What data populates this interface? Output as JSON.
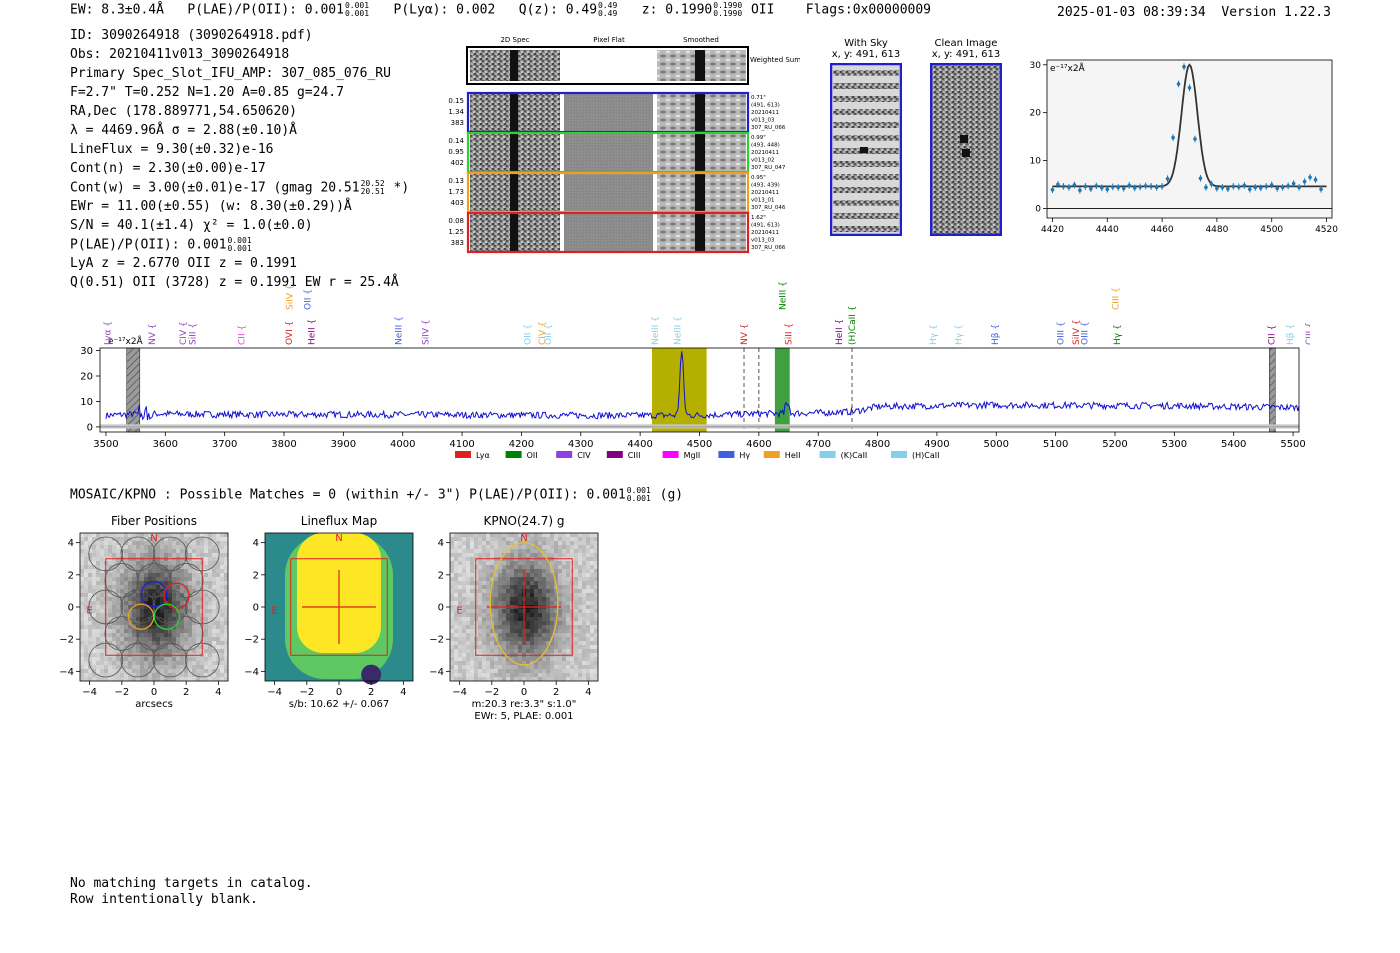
{
  "header": {
    "ew": "EW: 8.3±0.4Å",
    "plae_label": "P(LAE)/P(OII): 0.001",
    "plae_hi": "0.001",
    "plae_lo": "0.001",
    "plya": "P(Lyα): 0.002",
    "qz_label": "Q(z): 0.49",
    "qz_hi": "0.49",
    "qz_lo": "0.49",
    "z_label": "z: 0.1990",
    "z_hi": "0.1990",
    "z_lo": "0.1990",
    "z_line": "OII",
    "flags": "Flags:0x00000009",
    "datetime": "2025-01-03 08:39:34",
    "version": "Version 1.22.3"
  },
  "info": {
    "lines": [
      "ID: 3090264918 (3090264918.pdf)",
      "Obs: 20210411v013_3090264918",
      "Primary Spec_Slot_IFU_AMP: 307_085_076_RU",
      "F=2.7\"  T=0.252  N=1.20  A=0.85  g=24.7",
      "RA,Dec (178.889771,54.650620)",
      "λ = 4469.96Å  σ = 2.88(±0.10)Å",
      "LineFlux = 9.30(±0.32)e-16",
      "Cont(n) = 2.30(±0.00)e-17"
    ],
    "contw_pre": "Cont(w) = 3.00(±0.01)e-17 (gmag 20.51",
    "contw_hi": "20.52",
    "contw_lo": "20.51",
    "contw_post": "*)",
    "lines2": [
      "EWr = 11.00(±0.55) (w: 8.30(±0.29))Å",
      "S/N = 40.1(±1.4)  χ² = 1.0(±0.0)"
    ],
    "plae2_pre": "P(LAE)/P(OII): 0.001",
    "plae2_hi": "0.001",
    "plae2_lo": "0.001",
    "lines3": [
      "LyA z = 2.6770  OII z = 0.1991",
      "Q(0.51) OII (3728) z = 0.1991  EW r = 25.4Å"
    ]
  },
  "cutouts": {
    "col_headers": [
      "2D Spec",
      "Pixel Flat",
      "Smoothed"
    ],
    "weighted_sum": "Weighted Sum",
    "rows": [
      {
        "left": [
          "0.15",
          "1.34",
          "383"
        ],
        "right": [
          "0.71\"",
          "(491, 613)",
          "20210411",
          "v013_03",
          "307_RU_066"
        ],
        "color": "#1f1fd0"
      },
      {
        "left": [
          "0.14",
          "0.95",
          "402"
        ],
        "right": [
          "0.99\"",
          "(493, 448)",
          "20210411",
          "v013_02",
          "307_RU_047"
        ],
        "color": "#2fd02f"
      },
      {
        "left": [
          "0.13",
          "1.73",
          "403"
        ],
        "right": [
          "0.95\"",
          "(493, 439)",
          "20210411",
          "v013_01",
          "307_RU_046"
        ],
        "color": "#f0a020"
      },
      {
        "left": [
          "0.08",
          "1.25",
          "383"
        ],
        "right": [
          "1.62\"",
          "(491, 613)",
          "20210411",
          "v013_03",
          "307_RU_066"
        ],
        "color": "#e02020"
      }
    ]
  },
  "sky": {
    "with_sky_title": "With Sky",
    "with_sky_coords": "x, y: 491, 613",
    "clean_title": "Clean Image",
    "clean_coords": "x, y: 491, 613"
  },
  "zoom_chart": {
    "unit_label": "e⁻¹⁷x2Å",
    "colors": {
      "points": "#1f77b4",
      "fit": "#333333"
    }
  },
  "full_spec_unit": "e⁻¹⁷x2Å",
  "line_labels": [
    {
      "name": "Lyα",
      "wave": 3503,
      "color": "#9040c0",
      "tier": 2
    },
    {
      "name": "NV",
      "wave": 3578,
      "color": "#9040c0",
      "tier": 2
    },
    {
      "name": "CIV",
      "wave": 3630,
      "color": "#9040c0",
      "tier": 2
    },
    {
      "name": "SiII",
      "wave": 3646,
      "color": "#9040c0",
      "tier": 2
    },
    {
      "name": "CII",
      "wave": 3728,
      "color": "#e040e0",
      "tier": 2
    },
    {
      "name": "SiIV",
      "wave": 3809,
      "color": "#f0a020",
      "tier": 1
    },
    {
      "name": "OVI",
      "wave": 3808,
      "color": "#e02020",
      "tier": 2
    },
    {
      "name": "OII",
      "wave": 3840,
      "color": "#4060e0",
      "tier": 1
    },
    {
      "name": "HeII",
      "wave": 3846,
      "color": "#900090",
      "tier": 2
    },
    {
      "name": "NeIII",
      "wave": 3993,
      "color": "#4060e0",
      "tier": 2
    },
    {
      "name": "SiIV",
      "wave": 4038,
      "color": "#9040c0",
      "tier": 2
    },
    {
      "name": "OII",
      "wave": 4210,
      "color": "#87ceeb",
      "tier": 2
    },
    {
      "name": "CIV",
      "wave": 4235,
      "color": "#f0a020",
      "tier": 2
    },
    {
      "name": "OII",
      "wave": 4245,
      "color": "#87ceeb",
      "tier": 2
    },
    {
      "name": "NeIII",
      "wave": 4425,
      "color": "#87ceeb",
      "tier": 2
    },
    {
      "name": "NeIII",
      "wave": 4463,
      "color": "#87ceeb",
      "tier": 2
    },
    {
      "name": "NV",
      "wave": 4575,
      "color": "#e02020",
      "tier": 2
    },
    {
      "name": "NeIII",
      "wave": 4640,
      "color": "#008000",
      "tier": 1
    },
    {
      "name": "SiII",
      "wave": 4650,
      "color": "#e02020",
      "tier": 2
    },
    {
      "name": "HeII",
      "wave": 4735,
      "color": "#900090",
      "tier": 2
    },
    {
      "name": "(H)CaII",
      "wave": 4757,
      "color": "#008000",
      "tier": 2
    },
    {
      "name": "Hγ",
      "wave": 4893,
      "color": "#87ceeb",
      "tier": 2
    },
    {
      "name": "Hγ",
      "wave": 4936,
      "color": "#87ceeb",
      "tier": 2
    },
    {
      "name": "Hβ",
      "wave": 4998,
      "color": "#4060e0",
      "tier": 2
    },
    {
      "name": "OIII",
      "wave": 5108,
      "color": "#4060e0",
      "tier": 2
    },
    {
      "name": "SiIV",
      "wave": 5134,
      "color": "#e02020",
      "tier": 2
    },
    {
      "name": "OIII",
      "wave": 5149,
      "color": "#4060e0",
      "tier": 2
    },
    {
      "name": "CIII",
      "wave": 5201,
      "color": "#f0a020",
      "tier": 1
    },
    {
      "name": "Hγ",
      "wave": 5203,
      "color": "#008000",
      "tier": 2
    },
    {
      "name": "CII",
      "wave": 5464,
      "color": "#900090",
      "tier": 2
    },
    {
      "name": "Hβ",
      "wave": 5495,
      "color": "#87ceeb",
      "tier": 2
    },
    {
      "name": "CIII",
      "wave": 5527,
      "color": "#9040c0",
      "tier": 2
    }
  ],
  "legend": [
    {
      "label": "Lyα",
      "color": "#e02020"
    },
    {
      "label": "OII",
      "color": "#008000"
    },
    {
      "label": "CIV",
      "color": "#9040e0"
    },
    {
      "label": "CIII",
      "color": "#800080"
    },
    {
      "label": "MgII",
      "color": "#ff00ff"
    },
    {
      "label": "Hγ",
      "color": "#4060e0"
    },
    {
      "label": "HeII",
      "color": "#f0a020"
    },
    {
      "label": "(K)CaII",
      "color": "#87ceeb"
    },
    {
      "label": "(H)CaII",
      "color": "#87ceeb"
    }
  ],
  "mosaic": {
    "pre": "MOSAIC/KPNO : Possible Matches = 0 (within +/- 3\")  P(LAE)/P(OII): 0.001",
    "hi": "0.001",
    "lo": "0.001",
    "post": "(g)"
  },
  "panels": [
    {
      "title": "Fiber Positions",
      "xlabel": "arcsecs",
      "caption": []
    },
    {
      "title": "Lineflux Map",
      "xlabel": "",
      "caption": [
        "s/b: 10.62 +/- 0.067"
      ]
    },
    {
      "title": "KPNO(24.7) g",
      "xlabel": "",
      "caption": [
        "m:20.3  re:3.3\"  s:1.0\"",
        "EWr: 5, PLAE: 0.001"
      ]
    }
  ],
  "panel_ticks": [
    "−4",
    "−2",
    "0",
    "2",
    "4"
  ],
  "compass": {
    "n": "N",
    "e": "E"
  },
  "footer": [
    "No matching targets in catalog.",
    "Row intentionally blank."
  ],
  "chart_data": [
    {
      "type": "scatter",
      "title": "",
      "xlabel": "",
      "ylabel": "e⁻¹⁷x2Å",
      "xlim": [
        4418,
        4522
      ],
      "ylim": [
        -2,
        31
      ],
      "xticks": [
        4420,
        4440,
        4460,
        4480,
        4500,
        4520
      ],
      "yticks": [
        0,
        10,
        20,
        30
      ],
      "x": [
        4420,
        4422,
        4424,
        4426,
        4428,
        4430,
        4432,
        4434,
        4436,
        4438,
        4440,
        4442,
        4444,
        4446,
        4448,
        4450,
        4452,
        4454,
        4456,
        4458,
        4460,
        4462,
        4464,
        4466,
        4468,
        4470,
        4472,
        4474,
        4476,
        4478,
        4480,
        4482,
        4484,
        4486,
        4488,
        4490,
        4492,
        4494,
        4496,
        4498,
        4500,
        4502,
        4504,
        4506,
        4508,
        4510,
        4512,
        4514,
        4516,
        4518
      ],
      "y": [
        3.9,
        5.0,
        4.6,
        4.4,
        4.9,
        3.8,
        4.6,
        4.1,
        4.7,
        4.3,
        4.0,
        4.5,
        4.4,
        4.2,
        4.8,
        4.3,
        4.5,
        4.7,
        4.6,
        4.4,
        4.6,
        6.2,
        14.8,
        26.0,
        29.6,
        25.2,
        14.5,
        6.3,
        4.4,
        5.1,
        4.2,
        4.4,
        4.1,
        4.6,
        4.5,
        4.8,
        4.0,
        4.4,
        4.3,
        4.6,
        4.9,
        4.2,
        4.4,
        4.7,
        5.2,
        4.4,
        5.6,
        6.5,
        6.0,
        4.0
      ],
      "fit_center": 4470.0,
      "fit_sigma": 2.88,
      "fit_amp": 25.4,
      "fit_cont": 4.6
    },
    {
      "type": "line",
      "title": "",
      "xlabel": "",
      "ylabel": "e⁻¹⁷x2Å",
      "xlim": [
        3490,
        5510
      ],
      "ylim": [
        -2,
        31
      ],
      "xticks": [
        3500,
        3600,
        3700,
        3800,
        3900,
        4000,
        4100,
        4200,
        4300,
        4400,
        4500,
        4600,
        4700,
        4800,
        4900,
        5000,
        5100,
        5200,
        5300,
        5400,
        5500
      ],
      "yticks": [
        0,
        10,
        20,
        30
      ],
      "continuum_blue": [
        [
          3500,
          4.5
        ],
        [
          3560,
          5.2
        ],
        [
          3700,
          4.9
        ],
        [
          4000,
          4.8
        ],
        [
          4200,
          4.6
        ],
        [
          4400,
          4.5
        ],
        [
          4500,
          4.6
        ],
        [
          4600,
          5.2
        ],
        [
          4700,
          5.5
        ],
        [
          4760,
          6.0
        ],
        [
          4800,
          8.0
        ],
        [
          5000,
          8.6
        ],
        [
          5300,
          8.3
        ],
        [
          5510,
          7.6
        ]
      ],
      "peak_wave": 4470,
      "peak_value": 29.6,
      "highlights": [
        {
          "from": 4420,
          "to": 4512,
          "color": "#b5b000"
        },
        {
          "from": 4627,
          "to": 4652,
          "color": "#40a040"
        }
      ],
      "hatched": [
        {
          "from": 3535,
          "to": 3557
        },
        {
          "from": 5460,
          "to": 5470
        }
      ],
      "dashed": [
        4575,
        4600,
        4757
      ]
    }
  ]
}
